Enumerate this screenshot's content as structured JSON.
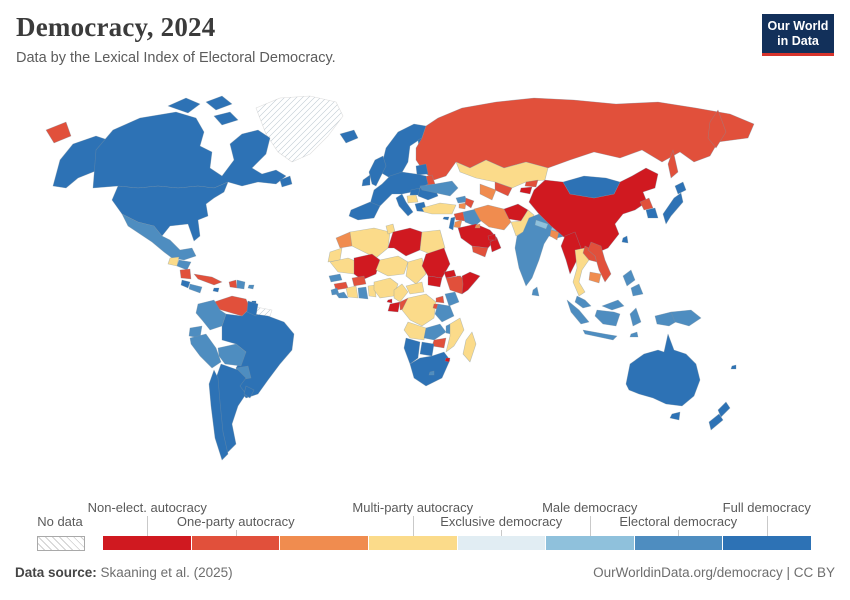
{
  "header": {
    "title": "Democracy, 2024",
    "subtitle": "Data by the Lexical Index of Electoral Democracy."
  },
  "logo": {
    "line1": "Our World",
    "line2": "in Data",
    "bg_color": "#12305a",
    "accent_color": "#d7342c"
  },
  "legend": {
    "no_data_label": "No data",
    "segments": [
      {
        "label": "Non-elect. autocracy",
        "color": "#d01920",
        "label_row": "top"
      },
      {
        "label": "One-party autocracy",
        "color": "#e1503b",
        "label_row": "bottom"
      },
      {
        "label": "",
        "color": "#f08c4f",
        "label_row": "none"
      },
      {
        "label": "Multi-party autocracy",
        "color": "#fbdb8a",
        "label_row": "top"
      },
      {
        "label": "Exclusive democracy",
        "color": "#e1edf3",
        "label_row": "bottom"
      },
      {
        "label": "Male democracy",
        "color": "#8fc1dc",
        "label_row": "top"
      },
      {
        "label": "Electoral democracy",
        "color": "#4e8dc0",
        "label_row": "bottom"
      },
      {
        "label": "Full democracy",
        "color": "#2d72b5",
        "label_row": "top"
      }
    ]
  },
  "footer": {
    "source_label": "Data source:",
    "source_value": " Skaaning et al. (2025)",
    "right_text": "OurWorldinData.org/democracy | CC BY"
  },
  "chart_data": {
    "type": "choropleth_map",
    "title": "Democracy, 2024",
    "subtitle": "Data by the Lexical Index of Electoral Democracy.",
    "legend_categories": [
      "Non-elect. autocracy",
      "One-party autocracy",
      "",
      "Multi-party autocracy",
      "Exclusive democracy",
      "Male democracy",
      "Electoral democracy",
      "Full democracy"
    ],
    "no_data_regions": [
      "greenland",
      "suriname_french_guiana"
    ],
    "countries": {
      "greenland": "no_data",
      "suriname_french_guiana": "no_data",
      "china": 0,
      "myanmar": 0,
      "saudi_arabia": 0,
      "oman": 0,
      "uae_qatar": 0,
      "libya": 0,
      "sudan": 0,
      "south_sudan": 0,
      "mali": 0,
      "eritrea": 0,
      "somalia": 0,
      "afghanistan": 0,
      "gabon": 0,
      "equatorial_guinea": 0,
      "eswatini": 0,
      "tajikistan": 0,
      "russia": 1,
      "belarus": 1,
      "venezuela": 1,
      "cuba": 1,
      "haiti": 1,
      "nicaragua": 1,
      "laos": 1,
      "vietnam": 1,
      "syria": 1,
      "yemen": 1,
      "azerbaijan": 1,
      "uzbekistan": 1,
      "kyrgyzstan": 1,
      "ethiopia": 1,
      "guinea": 1,
      "burkina_faso": 1,
      "zimbabwe": 1,
      "congo_brazzaville": 1,
      "rwanda_burundi": 1,
      "north_korea": 1,
      "uganda": 1,
      "djibouti": 1,
      "morocco": 2,
      "iran": 2,
      "turkmenistan": 2,
      "cambodia": 2,
      "bangladesh": 2,
      "jordan": 2,
      "armenia": 2,
      "kuwait": 2,
      "kazakhstan": 3,
      "pakistan": 3,
      "thailand": 3,
      "turkey": 3,
      "egypt": 3,
      "algeria": 3,
      "tunisia": 3,
      "mauritania": 3,
      "western_sahara": 3,
      "niger": 3,
      "chad": 3,
      "nigeria": 3,
      "ivory_coast": 3,
      "togo_benin": 3,
      "cameroon": 3,
      "central_african_republic": 3,
      "drc": 3,
      "angola": 3,
      "mozambique": 3,
      "madagascar": 3,
      "serbia_bosnia": 3,
      "guatemala": 3,
      "nepal": 5,
      "bhutan": 5,
      "mexico": 6,
      "colombia": 6,
      "ecuador": 6,
      "peru": 6,
      "bolivia": 6,
      "paraguay": 6,
      "honduras": 6,
      "panama": 6,
      "dominican_republic": 6,
      "puerto_rico": 6,
      "ukraine": 6,
      "georgia": 6,
      "iraq": 6,
      "india": 6,
      "sri_lanka": 6,
      "malaysia": 6,
      "borneo_malaysia": 6,
      "indonesia": 6,
      "papua_new_guinea": 6,
      "philippines": 6,
      "timor_leste": 6,
      "senegal": 6,
      "sierra_leone": 6,
      "liberia": 6,
      "ghana": 6,
      "kenya": 6,
      "tanzania": 6,
      "zambia": 6,
      "malawi": 6,
      "lesotho": 6,
      "united_states": 7,
      "canada": 7,
      "brazil": 7,
      "argentina": 7,
      "chile": 7,
      "uruguay": 7,
      "costa_rica": 7,
      "jamaica": 7,
      "trinidad": 7,
      "iceland": 7,
      "united_kingdom": 7,
      "ireland": 7,
      "norway_sweden": 7,
      "finland": 7,
      "baltics": 7,
      "western_europe": 7,
      "iberia": 7,
      "italy": 7,
      "hungary": 7,
      "greece": 7,
      "romania_bulgaria": 7,
      "cyprus": 7,
      "israel_lebanon": 7,
      "mongolia": 7,
      "south_korea": 7,
      "japan": 7,
      "taiwan": 7,
      "australia": 7,
      "new_zealand": 7,
      "fiji": 7,
      "south_africa": 7,
      "botswana": 7,
      "namibia": 7,
      "guyana": 7
    }
  }
}
